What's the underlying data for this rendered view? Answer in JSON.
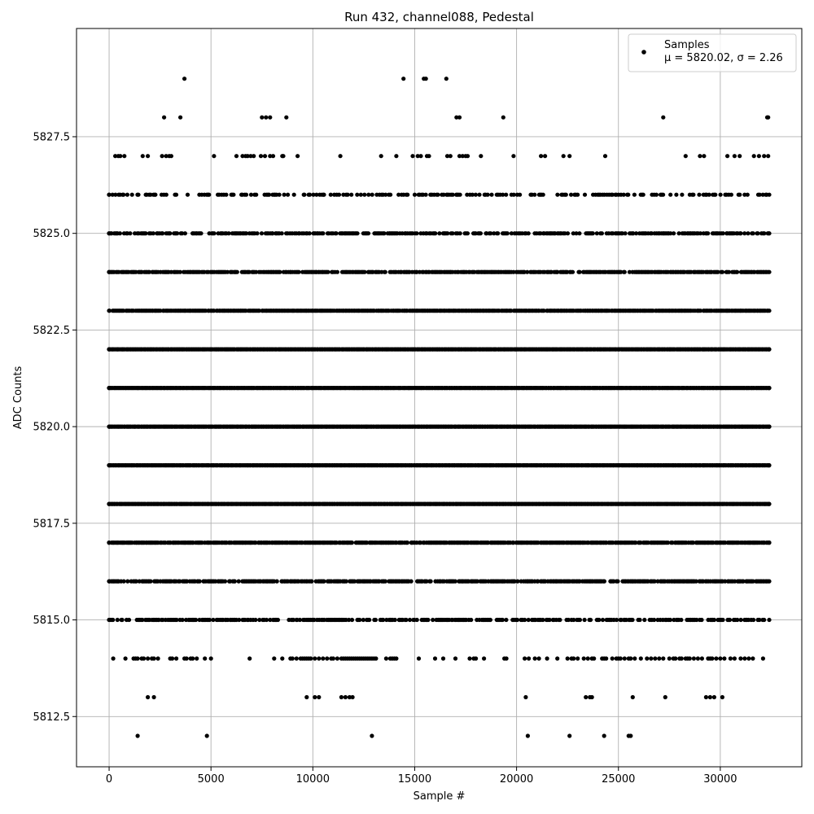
{
  "chart_data": {
    "type": "scatter",
    "title": "Run 432, channel088, Pedestal",
    "xlabel": "Sample #",
    "ylabel": "ADC Counts",
    "xlim": [
      -1600,
      34000
    ],
    "ylim": [
      5811.2,
      5830.3
    ],
    "xticks": [
      0,
      5000,
      10000,
      15000,
      20000,
      25000,
      30000
    ],
    "yticks": [
      5812.5,
      5815.0,
      5817.5,
      5820.0,
      5822.5,
      5825.0,
      5827.5
    ],
    "xtick_labels": [
      "0",
      "5000",
      "10000",
      "15000",
      "20000",
      "25000",
      "30000"
    ],
    "ytick_labels": [
      "5812.5",
      "5815.0",
      "5817.5",
      "5820.0",
      "5822.5",
      "5825.0",
      "5827.5"
    ],
    "grid": true,
    "legend_position": "top-right",
    "marker_color": "#000000",
    "legend_entries": [
      "Samples",
      "μ = 5820.02, σ = 2.26"
    ],
    "series": [
      {
        "name": "Samples",
        "x_range": [
          0,
          32400
        ],
        "levels": [
          {
            "y": 5812,
            "x": [
              1400,
              4800,
              12900,
              20550,
              22600,
              24300,
              25500,
              25600
            ]
          },
          {
            "y": 5813,
            "x": [
              1900,
              2200,
              9700,
              10100,
              10300,
              11400,
              11600,
              11800,
              11950,
              20450,
              23400,
              23600,
              23700,
              25700,
              27300,
              29300,
              29500,
              29700,
              30100
            ]
          },
          {
            "y": 5814,
            "x": [
              200,
              800,
              1200,
              1300,
              1400,
              1600,
              1700,
              1900,
              2100,
              2200,
              2400,
              3000,
              3100,
              3300,
              3700,
              3800,
              4000,
              4100,
              4300,
              4700,
              5000,
              6900,
              8100,
              8500,
              8900,
              9000,
              9200,
              9400,
              9500,
              9600,
              9700,
              9800,
              9900,
              10100,
              10300,
              10500,
              10700,
              10900,
              11000,
              11200,
              11400,
              11500,
              11600,
              11700,
              11800,
              11900,
              12000,
              12100,
              12200,
              12300,
              12400,
              12500,
              12600,
              12700,
              12800,
              12900,
              13000,
              13100,
              13600,
              13800,
              13900,
              14000,
              14100,
              15200,
              16000,
              16400,
              17000,
              17700,
              17900,
              18000,
              18400,
              19400,
              19500,
              20400,
              20600,
              20900,
              21100,
              21500,
              22000,
              22500,
              22700,
              22800,
              23000,
              23300,
              23500,
              23700,
              23800,
              24200,
              24300,
              24400,
              24700,
              24900,
              25000,
              25100,
              25300,
              25500,
              25600,
              25800,
              26100,
              26400,
              26600,
              26800,
              27000,
              27200,
              27500,
              27700,
              27800,
              28000,
              28100,
              28300,
              28400,
              28500,
              28700,
              28900,
              29100,
              29400,
              29500,
              29600,
              29800,
              30000,
              30200,
              30500,
              30700,
              31000,
              31200,
              31400,
              31600,
              32100
            ]
          },
          {
            "y": 5815,
            "density": 0.55
          },
          {
            "y": 5816,
            "density": 0.75
          },
          {
            "y": 5817,
            "density": 0.9
          },
          {
            "y": 5818,
            "density": 1.0
          },
          {
            "y": 5819,
            "density": 1.0
          },
          {
            "y": 5820,
            "density": 1.0
          },
          {
            "y": 5821,
            "density": 1.0
          },
          {
            "y": 5822,
            "density": 1.0
          },
          {
            "y": 5823,
            "density": 0.95
          },
          {
            "y": 5824,
            "density": 0.8
          },
          {
            "y": 5825,
            "density": 0.6
          },
          {
            "y": 5826,
            "density": 0.35
          },
          {
            "y": 5827,
            "x": [
              300,
              450,
              550,
              750,
              1650,
              1900,
              2600,
              2800,
              2950,
              3050,
              5150,
              6250,
              6550,
              6700,
              6800,
              6950,
              7100,
              7450,
              7650,
              7900,
              8050,
              8500,
              8550,
              9250,
              11350,
              13350,
              14100,
              14900,
              15150,
              15300,
              15600,
              15700,
              16600,
              16750,
              17200,
              17350,
              17500,
              17600,
              18250,
              19850,
              21200,
              21400,
              22300,
              22600,
              24350,
              28300,
              29000,
              29200,
              30350,
              30700,
              30950,
              31650,
              31900,
              32150,
              32350
            ]
          },
          {
            "y": 5828,
            "x": [
              2700,
              3500,
              7500,
              7700,
              7900,
              8700,
              17050,
              17200,
              19350,
              27200,
              32300,
              32350
            ]
          },
          {
            "y": 5829,
            "x": [
              3700,
              14450,
              15450,
              15550,
              16550
            ]
          }
        ]
      }
    ]
  }
}
